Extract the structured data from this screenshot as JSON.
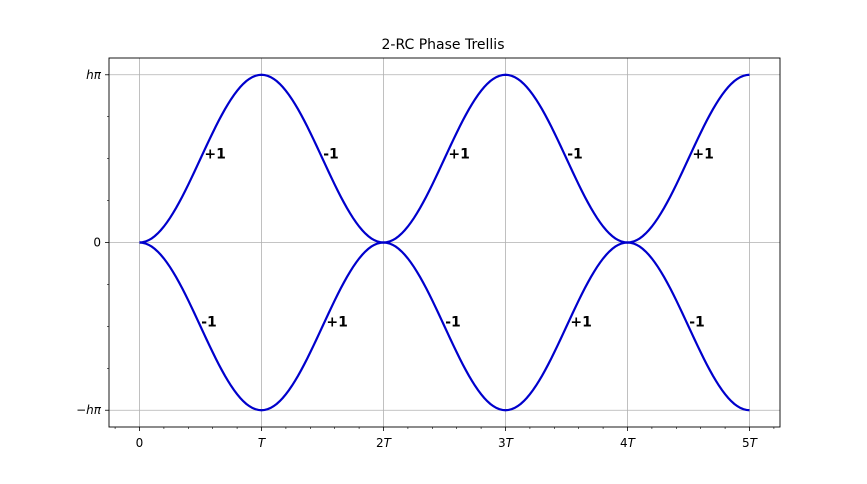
{
  "chart_data": {
    "type": "line",
    "title": "2-RC Phase Trellis",
    "xlabel": "",
    "ylabel": "",
    "x_ticks": [
      {
        "value": 0,
        "label": "0",
        "italic_part": ""
      },
      {
        "value": 1,
        "label": "",
        "italic_part": "T"
      },
      {
        "value": 2,
        "label": "2",
        "italic_part": "T"
      },
      {
        "value": 3,
        "label": "3",
        "italic_part": "T"
      },
      {
        "value": 4,
        "label": "4",
        "italic_part": "T"
      },
      {
        "value": 5,
        "label": "5",
        "italic_part": "T"
      }
    ],
    "y_ticks": [
      {
        "value": 1,
        "label": "hπ"
      },
      {
        "value": 0,
        "label": "0"
      },
      {
        "value": -1,
        "label": "−hπ"
      }
    ],
    "xlim": [
      -0.25,
      5.25
    ],
    "ylim": [
      -1.1,
      1.1
    ],
    "grid": true,
    "line_color": "#0000cc",
    "series": [
      {
        "x": [
          0,
          1,
          2,
          3,
          4,
          5
        ],
        "y": [
          0,
          1,
          0,
          1,
          0,
          1
        ]
      },
      {
        "x": [
          0,
          1,
          2,
          3,
          4,
          5
        ],
        "y": [
          0,
          -1,
          0,
          -1,
          0,
          -1
        ]
      }
    ],
    "annotations": [
      {
        "x": 0.62,
        "y": 0.53,
        "text": "+1"
      },
      {
        "x": 1.57,
        "y": 0.53,
        "text": "-1"
      },
      {
        "x": 2.62,
        "y": 0.53,
        "text": "+1"
      },
      {
        "x": 3.57,
        "y": 0.53,
        "text": "-1"
      },
      {
        "x": 4.62,
        "y": 0.53,
        "text": "+1"
      },
      {
        "x": 0.57,
        "y": -0.47,
        "text": "-1"
      },
      {
        "x": 1.62,
        "y": -0.47,
        "text": "+1"
      },
      {
        "x": 2.57,
        "y": -0.47,
        "text": "-1"
      },
      {
        "x": 3.62,
        "y": -0.47,
        "text": "+1"
      },
      {
        "x": 4.57,
        "y": -0.47,
        "text": "-1"
      }
    ]
  }
}
